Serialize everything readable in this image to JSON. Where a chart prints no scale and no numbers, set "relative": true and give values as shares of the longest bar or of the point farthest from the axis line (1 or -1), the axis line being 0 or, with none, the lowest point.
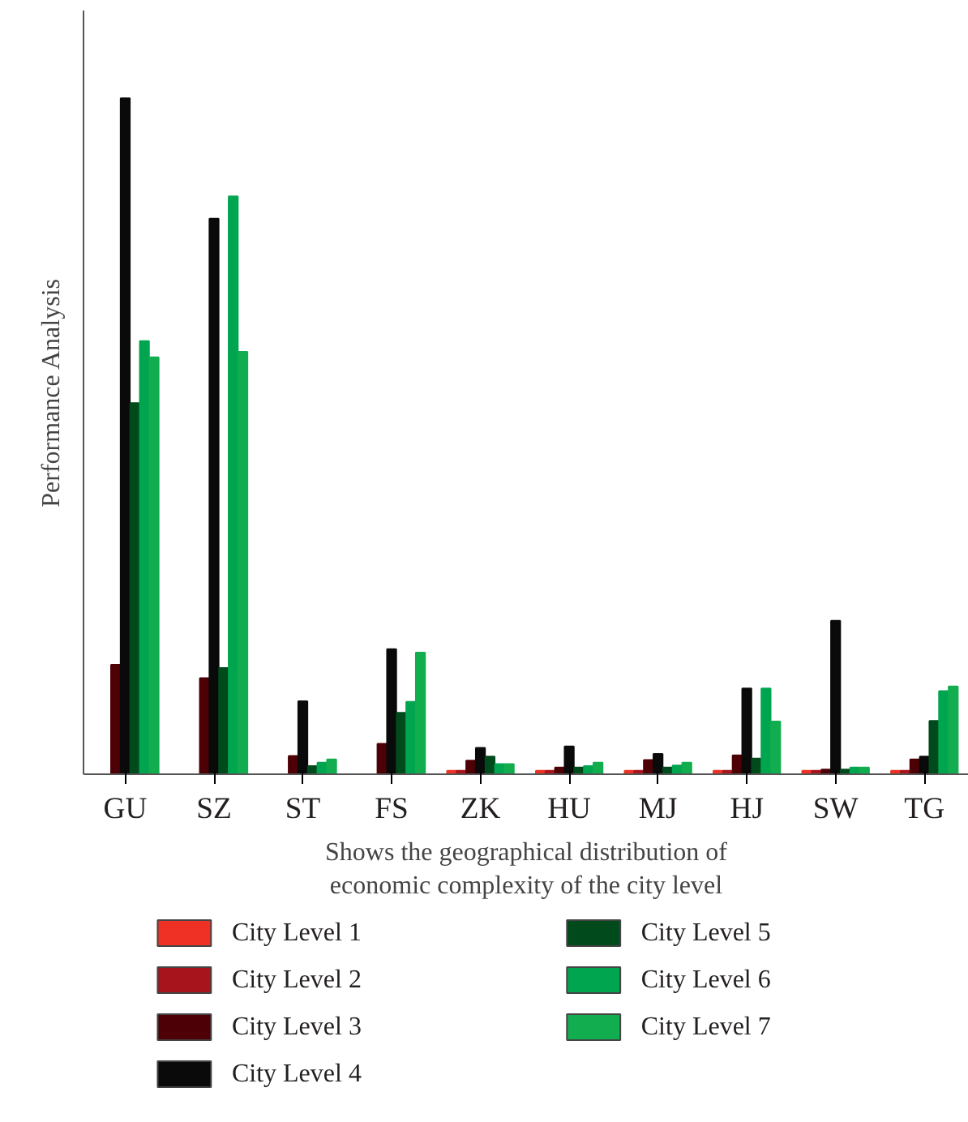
{
  "chart_data": {
    "type": "bar",
    "relative": true,
    "ylabel": "Performance Analysis",
    "xlabel": "Shows the geographical distribution of\neconomic complexity of the city level",
    "categories": [
      "GU",
      "SZ",
      "ST",
      "FS",
      "ZK",
      "HU",
      "MJ",
      "HJ",
      "SW",
      "TG"
    ],
    "series": [
      {
        "name": "City Level 1",
        "color": "#ee3124",
        "values": [
          0,
          0,
          0,
          0,
          0.005,
          0.005,
          0.005,
          0.005,
          0.005,
          0.005
        ]
      },
      {
        "name": "City Level 2",
        "color": "#a8141c",
        "values": [
          0,
          0,
          0,
          0,
          0.005,
          0.005,
          0.005,
          0.005,
          0.005,
          0.005
        ]
      },
      {
        "name": "City Level 3",
        "color": "#4d0005",
        "values": [
          0.162,
          0.142,
          0.027,
          0.045,
          0.02,
          0.01,
          0.021,
          0.028,
          0.007,
          0.022
        ]
      },
      {
        "name": "City Level 4",
        "color": "#0a0a0a",
        "values": [
          1,
          0.822,
          0.108,
          0.185,
          0.039,
          0.041,
          0.03,
          0.127,
          0.227,
          0.026
        ]
      },
      {
        "name": "City Level 5",
        "color": "#004a1c",
        "values": [
          0.549,
          0.157,
          0.012,
          0.091,
          0.026,
          0.01,
          0.01,
          0.023,
          0.007,
          0.079
        ]
      },
      {
        "name": "City Level 6",
        "color": "#00a550",
        "values": [
          0.641,
          0.855,
          0.017,
          0.107,
          0.015,
          0.012,
          0.013,
          0.127,
          0.01,
          0.123
        ]
      },
      {
        "name": "City Level 7",
        "color": "#12ad4e",
        "values": [
          0.617,
          0.625,
          0.022,
          0.18,
          0.015,
          0.017,
          0.017,
          0.078,
          0.01,
          0.13
        ]
      }
    ],
    "grid": false,
    "legend": "bottom",
    "tick_labels": "x"
  }
}
